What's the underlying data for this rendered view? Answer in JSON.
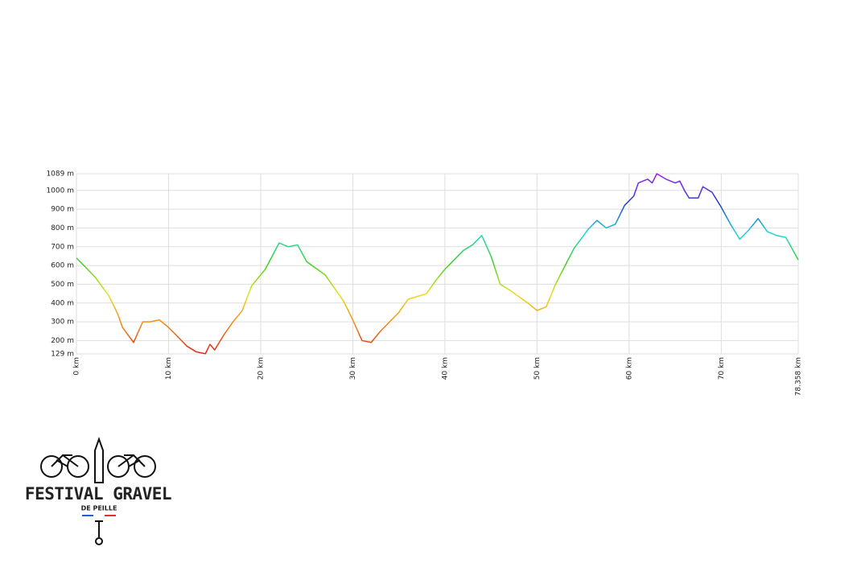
{
  "chart_data": {
    "type": "line",
    "x": [
      0,
      2,
      3.5,
      4.5,
      5,
      6.2,
      7.2,
      8,
      9,
      10,
      11,
      12,
      13,
      14,
      14.5,
      15,
      16,
      17,
      18,
      19,
      20.5,
      22,
      23,
      24,
      25,
      27,
      29,
      30,
      31,
      32,
      33,
      35,
      36,
      38,
      39,
      40,
      42,
      43,
      44,
      45,
      46,
      47,
      49,
      50,
      51,
      52,
      54,
      55.5,
      56.5,
      57.5,
      58.5,
      59.5,
      60.5,
      61,
      62,
      62.5,
      63,
      64,
      65,
      65.5,
      66,
      66.5,
      67.5,
      68,
      69,
      70,
      71,
      72,
      73,
      74,
      75,
      76,
      77,
      78.358
    ],
    "series": [
      {
        "values": [
          640,
          540,
          440,
          340,
          270,
          190,
          300,
          300,
          310,
          270,
          220,
          170,
          140,
          130,
          180,
          150,
          230,
          300,
          360,
          490,
          580,
          720,
          700,
          710,
          620,
          550,
          410,
          310,
          200,
          190,
          250,
          350,
          420,
          450,
          520,
          580,
          680,
          710,
          760,
          650,
          500,
          470,
          400,
          360,
          380,
          500,
          690,
          790,
          840,
          800,
          820,
          920,
          970,
          1040,
          1060,
          1040,
          1089,
          1060,
          1040,
          1050,
          1000,
          960,
          960,
          1020,
          990,
          910,
          820,
          740,
          790,
          850,
          780,
          760,
          750,
          630
        ]
      }
    ],
    "colorscale": [
      "#e0201a",
      "#f08a1a",
      "#e8e020",
      "#40d020",
      "#20d8d0",
      "#1a40d0",
      "#a020f0"
    ],
    "xlim": [
      0,
      78.358
    ],
    "xticks": [
      {
        "value": 0,
        "label": "0 km"
      },
      {
        "value": 10,
        "label": "10 km"
      },
      {
        "value": 20,
        "label": "20 km"
      },
      {
        "value": 30,
        "label": "30 km"
      },
      {
        "value": 40,
        "label": "40 km"
      },
      {
        "value": 50,
        "label": "50 km"
      },
      {
        "value": 60,
        "label": "60 km"
      },
      {
        "value": 70,
        "label": "70 km"
      },
      {
        "value": 78.358,
        "label": "78.358 km"
      }
    ],
    "ylim": [
      129,
      1089
    ],
    "yticks": [
      {
        "value": 129,
        "label": "129 m"
      },
      {
        "value": 200,
        "label": "200 m"
      },
      {
        "value": 300,
        "label": "300 m"
      },
      {
        "value": 400,
        "label": "400 m"
      },
      {
        "value": 500,
        "label": "500 m"
      },
      {
        "value": 600,
        "label": "600 m"
      },
      {
        "value": 700,
        "label": "700 m"
      },
      {
        "value": 800,
        "label": "800 m"
      },
      {
        "value": 900,
        "label": "900 m"
      },
      {
        "value": 1000,
        "label": "1000 m"
      },
      {
        "value": 1089,
        "label": "1089 m"
      }
    ],
    "grid": true
  },
  "logo": {
    "title": "FESTIVAL GRAVEL",
    "subtitle": "DE PEILLE"
  }
}
